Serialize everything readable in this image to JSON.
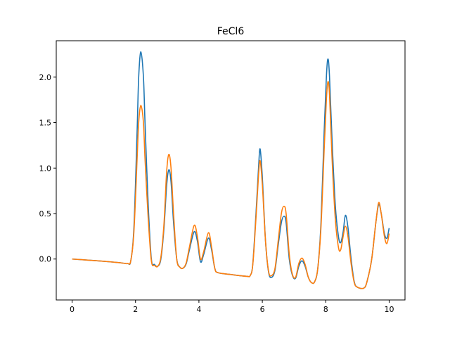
{
  "chart_data": {
    "type": "line",
    "title": "FeCl6",
    "xlabel": "",
    "ylabel": "",
    "xlim": [
      -0.5,
      10.5
    ],
    "ylim": [
      -0.45,
      2.4
    ],
    "x_ticks": [
      0,
      2,
      4,
      6,
      8,
      10
    ],
    "y_ticks": [
      0.0,
      0.5,
      1.0,
      1.5,
      2.0
    ],
    "x_tick_labels": [
      "0",
      "2",
      "4",
      "6",
      "8",
      "10"
    ],
    "y_tick_labels": [
      "0.0",
      "0.5",
      "1.0",
      "1.5",
      "2.0"
    ],
    "grid": false,
    "legend": "none",
    "series": [
      {
        "color": "#1f77b4",
        "points": [
          [
            0.0,
            0.0
          ],
          [
            0.5,
            -0.012
          ],
          [
            1.0,
            -0.025
          ],
          [
            1.5,
            -0.04
          ],
          [
            1.75,
            -0.05
          ],
          [
            1.85,
            -0.02
          ],
          [
            1.95,
            0.35
          ],
          [
            2.05,
            1.4
          ],
          [
            2.1,
            2.0
          ],
          [
            2.17,
            2.28
          ],
          [
            2.25,
            2.0
          ],
          [
            2.3,
            1.5
          ],
          [
            2.4,
            0.6
          ],
          [
            2.5,
            0.0
          ],
          [
            2.6,
            -0.06
          ],
          [
            2.7,
            -0.08
          ],
          [
            2.8,
            0.0
          ],
          [
            2.9,
            0.35
          ],
          [
            2.98,
            0.8
          ],
          [
            3.05,
            0.98
          ],
          [
            3.12,
            0.85
          ],
          [
            3.2,
            0.4
          ],
          [
            3.3,
            0.0
          ],
          [
            3.4,
            -0.09
          ],
          [
            3.5,
            -0.1
          ],
          [
            3.6,
            -0.05
          ],
          [
            3.7,
            0.1
          ],
          [
            3.85,
            0.3
          ],
          [
            3.95,
            0.2
          ],
          [
            4.05,
            -0.03
          ],
          [
            4.15,
            0.05
          ],
          [
            4.3,
            0.23
          ],
          [
            4.4,
            0.1
          ],
          [
            4.5,
            -0.1
          ],
          [
            4.6,
            -0.15
          ],
          [
            5.0,
            -0.17
          ],
          [
            5.5,
            -0.19
          ],
          [
            5.62,
            -0.18
          ],
          [
            5.7,
            -0.05
          ],
          [
            5.8,
            0.5
          ],
          [
            5.88,
            1.0
          ],
          [
            5.93,
            1.21
          ],
          [
            6.0,
            0.9
          ],
          [
            6.1,
            0.2
          ],
          [
            6.2,
            -0.15
          ],
          [
            6.3,
            -0.2
          ],
          [
            6.4,
            -0.12
          ],
          [
            6.5,
            0.15
          ],
          [
            6.6,
            0.4
          ],
          [
            6.68,
            0.47
          ],
          [
            6.75,
            0.4
          ],
          [
            6.85,
            0.0
          ],
          [
            6.95,
            -0.18
          ],
          [
            7.05,
            -0.21
          ],
          [
            7.15,
            -0.08
          ],
          [
            7.25,
            -0.02
          ],
          [
            7.35,
            -0.08
          ],
          [
            7.45,
            -0.2
          ],
          [
            7.55,
            -0.26
          ],
          [
            7.65,
            -0.25
          ],
          [
            7.75,
            -0.1
          ],
          [
            7.85,
            0.4
          ],
          [
            7.95,
            1.4
          ],
          [
            8.02,
            2.0
          ],
          [
            8.07,
            2.2
          ],
          [
            8.12,
            2.0
          ],
          [
            8.2,
            1.3
          ],
          [
            8.3,
            0.6
          ],
          [
            8.4,
            0.25
          ],
          [
            8.47,
            0.18
          ],
          [
            8.55,
            0.3
          ],
          [
            8.62,
            0.48
          ],
          [
            8.7,
            0.35
          ],
          [
            8.8,
            0.0
          ],
          [
            8.9,
            -0.25
          ],
          [
            9.0,
            -0.31
          ],
          [
            9.2,
            -0.32
          ],
          [
            9.3,
            -0.25
          ],
          [
            9.45,
            0.0
          ],
          [
            9.58,
            0.4
          ],
          [
            9.67,
            0.6
          ],
          [
            9.75,
            0.5
          ],
          [
            9.85,
            0.28
          ],
          [
            9.93,
            0.23
          ],
          [
            10.0,
            0.34
          ]
        ]
      },
      {
        "color": "#ff7f0e",
        "points": [
          [
            0.0,
            0.0
          ],
          [
            0.5,
            -0.012
          ],
          [
            1.0,
            -0.025
          ],
          [
            1.5,
            -0.04
          ],
          [
            1.75,
            -0.05
          ],
          [
            1.85,
            -0.02
          ],
          [
            1.95,
            0.3
          ],
          [
            2.05,
            1.1
          ],
          [
            2.1,
            1.5
          ],
          [
            2.17,
            1.69
          ],
          [
            2.25,
            1.5
          ],
          [
            2.3,
            1.1
          ],
          [
            2.4,
            0.45
          ],
          [
            2.5,
            -0.02
          ],
          [
            2.6,
            -0.07
          ],
          [
            2.7,
            -0.08
          ],
          [
            2.8,
            0.02
          ],
          [
            2.9,
            0.4
          ],
          [
            2.98,
            0.95
          ],
          [
            3.05,
            1.15
          ],
          [
            3.12,
            1.0
          ],
          [
            3.2,
            0.5
          ],
          [
            3.3,
            0.0
          ],
          [
            3.4,
            -0.09
          ],
          [
            3.5,
            -0.1
          ],
          [
            3.6,
            -0.04
          ],
          [
            3.7,
            0.13
          ],
          [
            3.85,
            0.37
          ],
          [
            3.95,
            0.25
          ],
          [
            4.05,
            0.0
          ],
          [
            4.15,
            0.08
          ],
          [
            4.3,
            0.29
          ],
          [
            4.4,
            0.13
          ],
          [
            4.5,
            -0.1
          ],
          [
            4.6,
            -0.15
          ],
          [
            5.0,
            -0.17
          ],
          [
            5.5,
            -0.19
          ],
          [
            5.62,
            -0.18
          ],
          [
            5.7,
            -0.06
          ],
          [
            5.8,
            0.45
          ],
          [
            5.88,
            0.92
          ],
          [
            5.93,
            1.08
          ],
          [
            6.0,
            0.82
          ],
          [
            6.1,
            0.2
          ],
          [
            6.2,
            -0.14
          ],
          [
            6.3,
            -0.18
          ],
          [
            6.4,
            -0.1
          ],
          [
            6.5,
            0.2
          ],
          [
            6.6,
            0.5
          ],
          [
            6.68,
            0.58
          ],
          [
            6.75,
            0.5
          ],
          [
            6.85,
            0.05
          ],
          [
            6.95,
            -0.17
          ],
          [
            7.05,
            -0.2
          ],
          [
            7.15,
            -0.05
          ],
          [
            7.25,
            0.01
          ],
          [
            7.35,
            -0.06
          ],
          [
            7.45,
            -0.2
          ],
          [
            7.55,
            -0.26
          ],
          [
            7.65,
            -0.25
          ],
          [
            7.75,
            -0.1
          ],
          [
            7.85,
            0.35
          ],
          [
            7.95,
            1.2
          ],
          [
            8.02,
            1.75
          ],
          [
            8.07,
            1.95
          ],
          [
            8.12,
            1.8
          ],
          [
            8.2,
            1.1
          ],
          [
            8.3,
            0.45
          ],
          [
            8.4,
            0.13
          ],
          [
            8.47,
            0.1
          ],
          [
            8.55,
            0.25
          ],
          [
            8.62,
            0.36
          ],
          [
            8.7,
            0.25
          ],
          [
            8.8,
            -0.05
          ],
          [
            8.9,
            -0.26
          ],
          [
            9.0,
            -0.31
          ],
          [
            9.2,
            -0.32
          ],
          [
            9.3,
            -0.25
          ],
          [
            9.45,
            0.0
          ],
          [
            9.58,
            0.4
          ],
          [
            9.67,
            0.62
          ],
          [
            9.75,
            0.5
          ],
          [
            9.85,
            0.25
          ],
          [
            9.93,
            0.17
          ],
          [
            10.0,
            0.28
          ]
        ]
      }
    ]
  }
}
